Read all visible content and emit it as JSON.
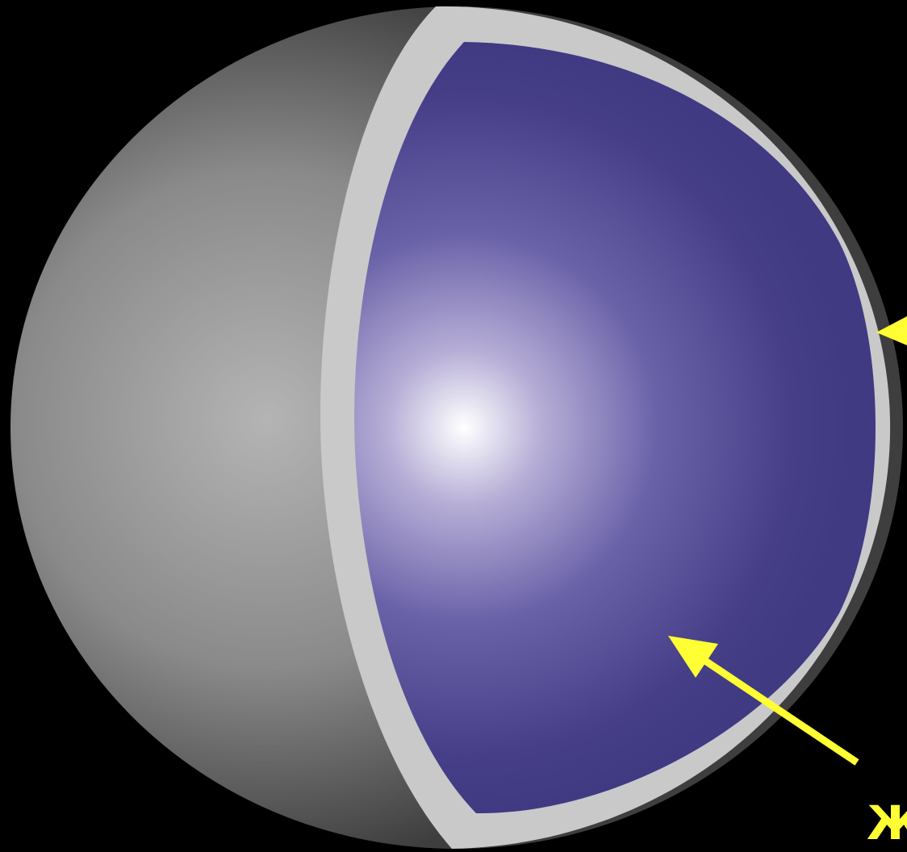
{
  "label": "Ж"
}
